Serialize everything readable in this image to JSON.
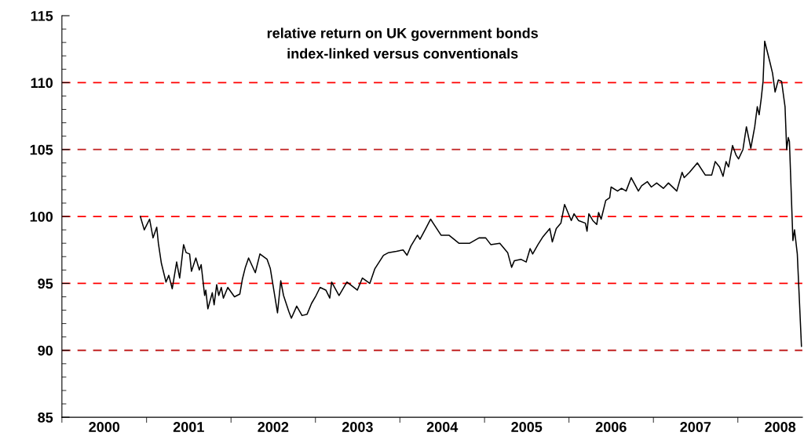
{
  "chart_data": {
    "type": "line",
    "title": "relative return on UK government bonds\nindex-linked versus conventionals",
    "x": [
      "2000-12-05",
      "2000-12-22",
      "2001-01-14",
      "2001-01-29",
      "2001-02-14",
      "2001-02-21",
      "2001-03-06",
      "2001-03-26",
      "2001-04-07",
      "2001-04-22",
      "2001-05-11",
      "2001-05-24",
      "2001-06-10",
      "2001-06-21",
      "2001-07-06",
      "2001-07-14",
      "2001-08-02",
      "2001-08-17",
      "2001-08-25",
      "2001-09-09",
      "2001-09-14",
      "2001-09-23",
      "2001-10-12",
      "2001-10-20",
      "2001-10-31",
      "2001-11-09",
      "2001-11-20",
      "2001-11-29",
      "2001-12-18",
      "2002-01-16",
      "2002-02-08",
      "2002-02-19",
      "2002-03-04",
      "2002-03-18",
      "2002-04-16",
      "2002-05-06",
      "2002-06-06",
      "2002-06-20",
      "2002-07-21",
      "2002-08-04",
      "2002-08-16",
      "2002-09-08",
      "2002-09-19",
      "2002-10-12",
      "2002-11-04",
      "2002-11-26",
      "2002-12-15",
      "2003-01-01",
      "2003-01-21",
      "2003-02-15",
      "2003-03-04",
      "2003-03-12",
      "2003-04-13",
      "2003-05-17",
      "2003-07-01",
      "2003-07-23",
      "2003-08-24",
      "2003-09-15",
      "2003-10-22",
      "2003-11-13",
      "2003-12-17",
      "2004-01-15",
      "2004-02-01",
      "2004-02-18",
      "2004-03-17",
      "2004-03-28",
      "2004-04-22",
      "2004-05-13",
      "2004-05-24",
      "2004-06-27",
      "2004-07-31",
      "2004-09-12",
      "2004-10-29",
      "2004-12-08",
      "2005-01-06",
      "2005-01-28",
      "2005-03-08",
      "2005-04-11",
      "2005-04-28",
      "2005-05-10",
      "2005-06-07",
      "2005-06-30",
      "2005-07-17",
      "2005-07-28",
      "2005-08-20",
      "2005-09-11",
      "2005-10-10",
      "2005-10-21",
      "2005-11-07",
      "2005-11-27",
      "2005-12-13",
      "2006-01-11",
      "2006-01-23",
      "2006-02-11",
      "2006-03-13",
      "2006-03-20",
      "2006-03-28",
      "2006-04-14",
      "2006-05-01",
      "2006-05-09",
      "2006-05-20",
      "2006-06-09",
      "2006-06-26",
      "2006-07-02",
      "2006-07-30",
      "2006-08-16",
      "2006-09-05",
      "2006-09-27",
      "2006-10-28",
      "2006-11-11",
      "2006-12-06",
      "2006-12-23",
      "2007-01-15",
      "2007-02-13",
      "2007-03-07",
      "2007-04-12",
      "2007-05-05",
      "2007-05-14",
      "2007-06-06",
      "2007-07-10",
      "2007-08-13",
      "2007-09-10",
      "2007-09-25",
      "2007-10-14",
      "2007-10-29",
      "2007-11-11",
      "2007-11-22",
      "2007-12-09",
      "2007-12-24",
      "2008-01-04",
      "2008-01-23",
      "2008-02-07",
      "2008-02-26",
      "2008-03-14",
      "2008-03-25",
      "2008-04-02",
      "2008-04-11",
      "2008-04-19",
      "2008-04-26",
      "2008-05-19",
      "2008-05-30",
      "2008-06-10",
      "2008-06-24",
      "2008-07-08",
      "2008-07-23",
      "2008-07-30",
      "2008-08-06",
      "2008-08-11",
      "2008-08-26",
      "2008-09-02",
      "2008-09-14",
      "2008-10-02"
    ],
    "series": [
      {
        "color": "#000000",
        "values": [
          100.0,
          99.0,
          99.8,
          98.4,
          99.2,
          98.0,
          96.5,
          95.1,
          95.6,
          94.6,
          96.6,
          95.4,
          97.9,
          97.3,
          97.2,
          95.9,
          96.9,
          96.0,
          96.4,
          94.1,
          94.5,
          93.1,
          94.3,
          93.4,
          94.9,
          94.1,
          94.7,
          93.9,
          94.7,
          94.0,
          94.2,
          95.3,
          96.2,
          96.9,
          95.8,
          97.2,
          96.8,
          96.1,
          92.8,
          95.2,
          94.1,
          92.9,
          92.4,
          93.3,
          92.6,
          92.7,
          93.5,
          94.0,
          94.7,
          94.5,
          93.9,
          95.1,
          94.1,
          95.1,
          94.5,
          95.4,
          95.0,
          96.1,
          97.1,
          97.3,
          97.4,
          97.5,
          97.1,
          97.8,
          98.6,
          98.3,
          99.1,
          99.8,
          99.5,
          98.6,
          98.6,
          98.0,
          98.0,
          98.4,
          98.4,
          97.9,
          98.0,
          97.3,
          96.2,
          96.7,
          96.8,
          96.6,
          97.6,
          97.2,
          97.9,
          98.5,
          99.1,
          98.1,
          99.1,
          99.5,
          100.9,
          99.7,
          100.2,
          99.7,
          99.5,
          98.9,
          100.2,
          99.7,
          99.4,
          100.3,
          99.8,
          101.2,
          101.4,
          102.2,
          101.9,
          102.1,
          101.9,
          102.9,
          101.9,
          102.3,
          102.6,
          102.2,
          102.5,
          102.1,
          102.5,
          101.9,
          103.3,
          102.9,
          103.3,
          104.0,
          103.1,
          103.1,
          104.1,
          103.7,
          103.0,
          104.1,
          103.7,
          105.3,
          104.6,
          104.3,
          105.0,
          106.7,
          105.1,
          106.7,
          108.2,
          107.6,
          108.8,
          110.1,
          113.1,
          111.5,
          110.7,
          109.3,
          110.2,
          110.1,
          108.2,
          105.0,
          105.9,
          105.6,
          98.2,
          99.0,
          97.2,
          90.3
        ]
      }
    ],
    "xlim": [
      "2000-01-01",
      "2008-10-06"
    ],
    "xticks": [
      {
        "value": "2000-01-01",
        "label": null
      },
      {
        "value": "2000-07-02",
        "label": "2000"
      },
      {
        "value": "2001-01-01",
        "label": null
      },
      {
        "value": "2001-07-02",
        "label": "2001"
      },
      {
        "value": "2002-01-01",
        "label": null
      },
      {
        "value": "2002-07-02",
        "label": "2002"
      },
      {
        "value": "2003-01-01",
        "label": null
      },
      {
        "value": "2003-07-02",
        "label": "2003"
      },
      {
        "value": "2004-01-01",
        "label": null
      },
      {
        "value": "2004-07-02",
        "label": "2004"
      },
      {
        "value": "2005-01-01",
        "label": null
      },
      {
        "value": "2005-07-02",
        "label": "2005"
      },
      {
        "value": "2006-01-01",
        "label": null
      },
      {
        "value": "2006-07-02",
        "label": "2006"
      },
      {
        "value": "2007-01-01",
        "label": null
      },
      {
        "value": "2007-07-02",
        "label": "2007"
      },
      {
        "value": "2008-01-01",
        "label": null
      },
      {
        "value": "2008-07-02",
        "label": "2008"
      }
    ],
    "ylim": [
      85,
      115
    ],
    "yticks": [
      85,
      {
        "value": 86,
        "label": null
      },
      {
        "value": 87,
        "label": null
      },
      {
        "value": 88,
        "label": null
      },
      {
        "value": 89,
        "label": null
      },
      90,
      {
        "value": 91,
        "label": null
      },
      {
        "value": 92,
        "label": null
      },
      {
        "value": 93,
        "label": null
      },
      {
        "value": 94,
        "label": null
      },
      95,
      {
        "value": 96,
        "label": null
      },
      {
        "value": 97,
        "label": null
      },
      {
        "value": 98,
        "label": null
      },
      {
        "value": 99,
        "label": null
      },
      100,
      {
        "value": 101,
        "label": null
      },
      {
        "value": 102,
        "label": null
      },
      {
        "value": 103,
        "label": null
      },
      {
        "value": 104,
        "label": null
      },
      105,
      {
        "value": 106,
        "label": null
      },
      {
        "value": 107,
        "label": null
      },
      {
        "value": 108,
        "label": null
      },
      {
        "value": 109,
        "label": null
      },
      110,
      {
        "value": 111,
        "label": null
      },
      {
        "value": 112,
        "label": null
      },
      {
        "value": 113,
        "label": null
      },
      {
        "value": 114,
        "label": null
      },
      115
    ],
    "ref_lines": [
      {
        "axis": "y",
        "value": 90,
        "color": "#c02020",
        "line_style": "dashed"
      },
      {
        "axis": "y",
        "value": 95,
        "color": "#ff0000",
        "line_style": "dashed"
      },
      {
        "axis": "y",
        "value": 100,
        "color": "#ff0000",
        "line_style": "dashed"
      },
      {
        "axis": "y",
        "value": 105,
        "color": "#c02020",
        "line_style": "dashed"
      },
      {
        "axis": "y",
        "value": 110,
        "color": "#ff0000",
        "line_style": "dashed"
      }
    ],
    "grid": false,
    "legend": false
  }
}
